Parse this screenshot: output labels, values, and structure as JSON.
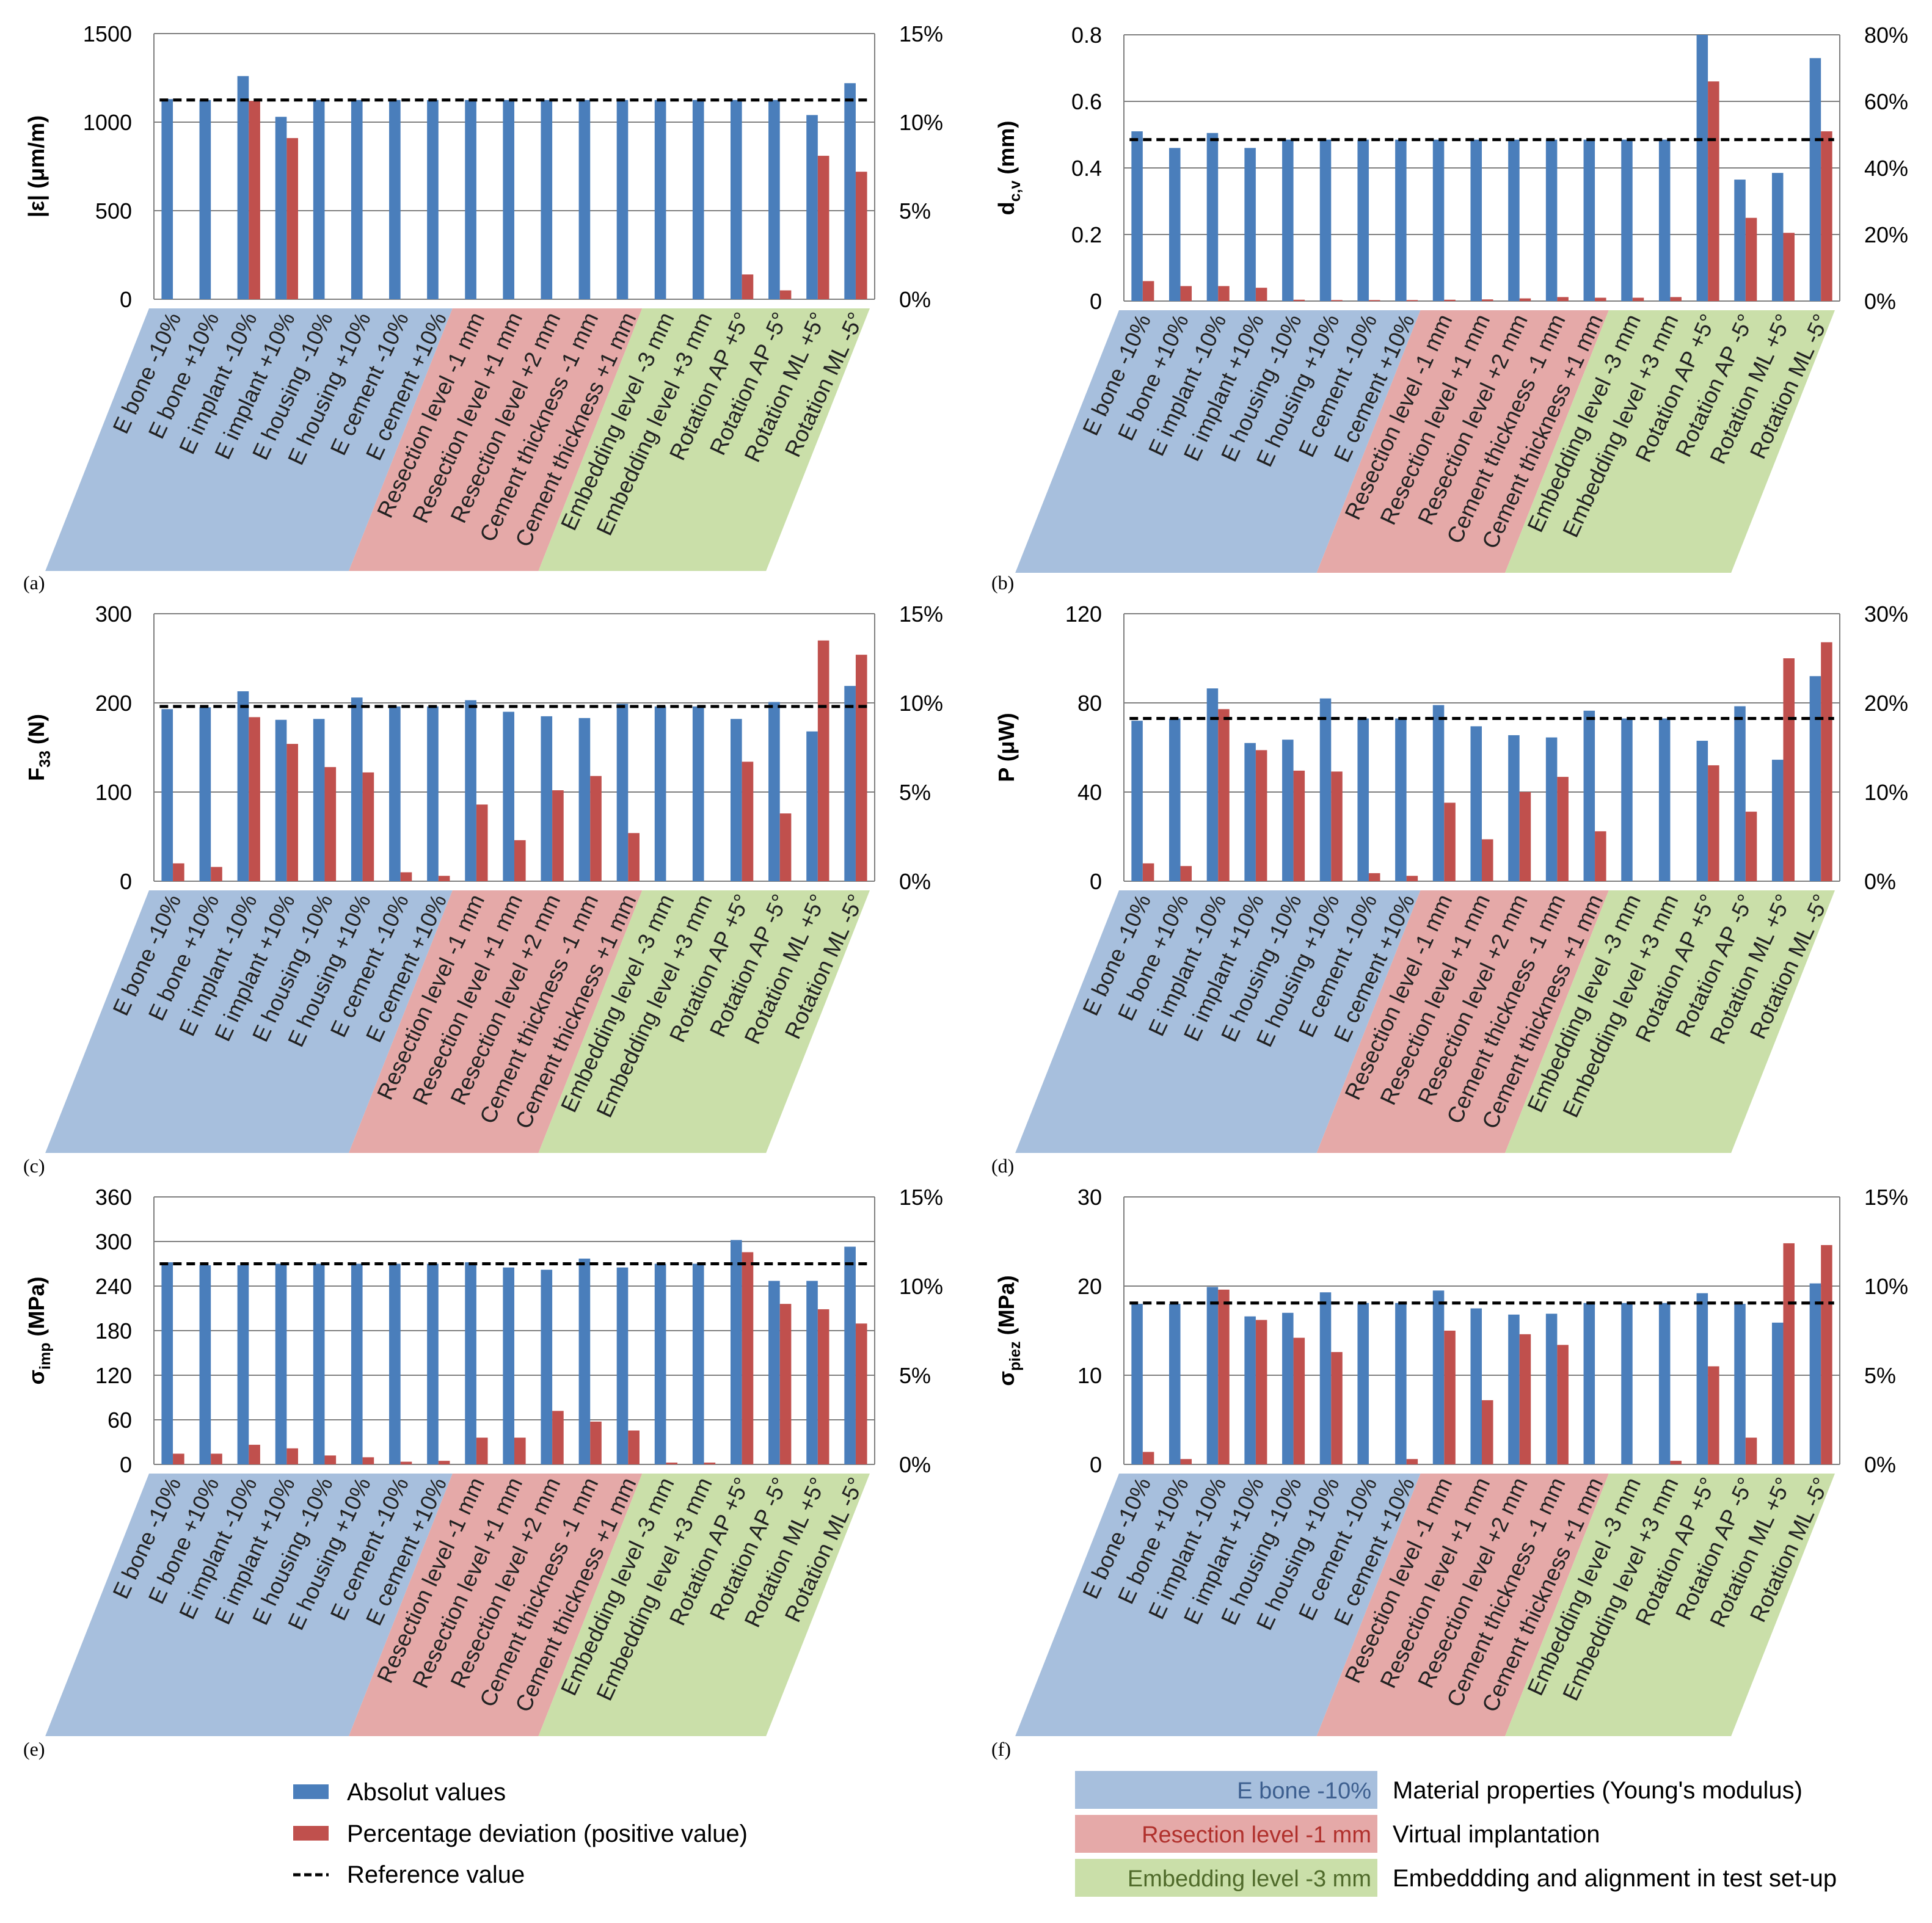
{
  "colors": {
    "absolute": "#4a7ebb",
    "percent": "#c0504d",
    "reference": "#000000",
    "group_material": "#a7bfdd",
    "group_virtual": "#e5a9a8",
    "group_embedding": "#cadfa9",
    "material_text": "#3d5f8f",
    "virtual_text": "#b0302c",
    "embedding_text": "#4f6a2a"
  },
  "categories": [
    "E bone -10%",
    "E bone +10%",
    "E implant -10%",
    "E implant +10%",
    "E housing -10%",
    "E housing +10%",
    "E cement -10%",
    "E cement +10%",
    "Resection level  -1 mm",
    "Resection level  +1 mm",
    "Resection level  +2 mm",
    "Cement thickness -1 mm",
    "Cement thickness +1 mm",
    "Embedding level -3 mm",
    "Embedding level +3 mm",
    "Rotation AP +5°",
    "Rotation AP -5°",
    "Rotation ML +5°",
    "Rotation ML -5°"
  ],
  "legend": {
    "absolute": "Absolut values",
    "percent": "Percentage deviation (positive value)",
    "reference": "Reference value",
    "group_material_sample": "E bone -10%",
    "group_material_desc": "Material properties (Young's modulus)",
    "group_virtual_sample": "Resection level -1 mm",
    "group_virtual_desc": "Virtual implantation",
    "group_embedding_sample": "Embedding level -3 mm",
    "group_embedding_desc": "Embeddding and alignment in test set-up"
  },
  "chart_data": [
    {
      "type": "bar",
      "panel": "(a)",
      "ylabel": "|ε| (μm/m)",
      "ylabel_main": "|ε| (μm/m)",
      "ylabel_sub": "",
      "ylim": [
        0,
        1500
      ],
      "yticks": [
        "0",
        "500",
        "1000",
        "1500"
      ],
      "y2lim": [
        0,
        15
      ],
      "y2ticks": [
        "0%",
        "5%",
        "10%",
        "15%"
      ],
      "reference": 1125,
      "series": [
        {
          "name": "Absolut values",
          "axis": "left",
          "values": [
            1130,
            1125,
            1260,
            1030,
            1125,
            1125,
            1125,
            1125,
            1125,
            1125,
            1125,
            1125,
            1125,
            1125,
            1125,
            1125,
            1125,
            1040,
            1220
          ]
        },
        {
          "name": "Percentage deviation (positive value)",
          "axis": "right",
          "values": [
            0,
            0,
            11.2,
            9.1,
            0,
            0,
            0,
            0,
            0,
            0,
            0,
            0,
            0,
            0,
            0,
            1.4,
            0.5,
            8.1,
            7.2
          ]
        }
      ]
    },
    {
      "type": "bar",
      "panel": "(b)",
      "ylabel": "dc,v (mm)",
      "ylabel_main": "d",
      "ylabel_sub": "c,v",
      "ylabel_unit": " (mm)",
      "ylim": [
        0,
        0.8
      ],
      "yticks": [
        "0",
        "0.2",
        "0.4",
        "0.6",
        "0.8"
      ],
      "y2lim": [
        0,
        80
      ],
      "y2ticks": [
        "0%",
        "20%",
        "40%",
        "60%",
        "80%"
      ],
      "reference": 0.485,
      "series": [
        {
          "name": "Absolut values",
          "axis": "left",
          "values": [
            0.51,
            0.46,
            0.505,
            0.46,
            0.485,
            0.485,
            0.485,
            0.485,
            0.485,
            0.485,
            0.485,
            0.485,
            0.485,
            0.485,
            0.485,
            0.8,
            0.365,
            0.385,
            0.73
          ]
        },
        {
          "name": "Percentage deviation (positive value)",
          "axis": "right",
          "values": [
            6,
            4.5,
            4.5,
            4,
            0.4,
            0.3,
            0.3,
            0.3,
            0.4,
            0.5,
            0.8,
            1.2,
            1,
            1,
            1.2,
            66,
            25,
            20.5,
            51
          ]
        }
      ]
    },
    {
      "type": "bar",
      "panel": "(c)",
      "ylabel": "F33 (N)",
      "ylabel_main": "F",
      "ylabel_sub": "33",
      "ylabel_unit": " (N)",
      "ylim": [
        0,
        300
      ],
      "yticks": [
        "0",
        "100",
        "200",
        "300"
      ],
      "y2lim": [
        0,
        15
      ],
      "y2ticks": [
        "0%",
        "5%",
        "10%",
        "15%"
      ],
      "reference": 196,
      "series": [
        {
          "name": "Absolut values",
          "axis": "left",
          "values": [
            193,
            195,
            213,
            181,
            182,
            206,
            196,
            196,
            203,
            190,
            185,
            183,
            199,
            196,
            196,
            182,
            201,
            168,
            219
          ]
        },
        {
          "name": "Percentage deviation (positive value)",
          "axis": "right",
          "values": [
            1,
            0.8,
            9.2,
            7.7,
            6.4,
            6.1,
            0.5,
            0.3,
            4.3,
            2.3,
            5.1,
            5.9,
            2.7,
            0,
            0,
            6.7,
            3.8,
            13.5,
            12.7
          ]
        }
      ]
    },
    {
      "type": "bar",
      "panel": "(d)",
      "ylabel": "P (μW)",
      "ylabel_main": "P (μW)",
      "ylabel_sub": "",
      "ylim": [
        0,
        120
      ],
      "yticks": [
        "0",
        "40",
        "80",
        "120"
      ],
      "y2lim": [
        0,
        30
      ],
      "y2ticks": [
        "0%",
        "10%",
        "20%",
        "30%"
      ],
      "reference": 73,
      "series": [
        {
          "name": "Absolut values",
          "axis": "left",
          "values": [
            72,
            73,
            86.5,
            62,
            63.5,
            82,
            73,
            73,
            79,
            69.5,
            65.5,
            64.5,
            76.5,
            73,
            73,
            63,
            78.5,
            54.5,
            92
          ]
        },
        {
          "name": "Percentage deviation (positive value)",
          "axis": "right",
          "values": [
            2,
            1.7,
            19.3,
            14.7,
            12.4,
            12.3,
            0.9,
            0.6,
            8.8,
            4.7,
            10,
            11.7,
            5.6,
            0,
            0,
            13,
            7.8,
            25,
            26.8
          ]
        }
      ]
    },
    {
      "type": "bar",
      "panel": "(e)",
      "ylabel": "σimp (MPa)",
      "ylabel_main": "σ",
      "ylabel_sub": "imp",
      "ylabel_unit": " (MPa)",
      "ylim": [
        0,
        360
      ],
      "yticks": [
        "0",
        "60",
        "120",
        "180",
        "240",
        "300",
        "360"
      ],
      "y2lim": [
        0,
        15
      ],
      "y2ticks": [
        "0%",
        "5%",
        "10%",
        "15%"
      ],
      "reference": 270,
      "series": [
        {
          "name": "Absolut values",
          "axis": "left",
          "values": [
            272,
            268,
            268,
            270,
            270,
            270,
            270,
            270,
            272,
            265,
            262,
            277,
            265,
            270,
            270,
            302,
            247,
            247,
            293
          ]
        },
        {
          "name": "Percentage deviation (positive value)",
          "axis": "right",
          "values": [
            0.6,
            0.6,
            1.1,
            0.9,
            0.5,
            0.4,
            0.15,
            0.2,
            1.5,
            1.5,
            3,
            2.4,
            1.9,
            0.1,
            0.1,
            11.9,
            9,
            8.7,
            7.9
          ]
        }
      ]
    },
    {
      "type": "bar",
      "panel": "(f)",
      "ylabel": "σpiez (MPa)",
      "ylabel_main": "σ",
      "ylabel_sub": "piez",
      "ylabel_unit": " (MPa)",
      "ylim": [
        0,
        30
      ],
      "yticks": [
        "0",
        "10",
        "20",
        "30"
      ],
      "y2lim": [
        0,
        15
      ],
      "y2ticks": [
        "0%",
        "5%",
        "10%",
        "15%"
      ],
      "reference": 18.1,
      "series": [
        {
          "name": "Absolut values",
          "axis": "left",
          "values": [
            18,
            18,
            19.9,
            16.6,
            17,
            19.3,
            18.1,
            18.1,
            19.5,
            17.5,
            16.8,
            16.9,
            18.1,
            18.1,
            18.1,
            19.2,
            18,
            15.9,
            20.3
          ]
        },
        {
          "name": "Percentage deviation (positive value)",
          "axis": "right",
          "values": [
            0.7,
            0.3,
            9.8,
            8.1,
            7.1,
            6.3,
            0,
            0.3,
            7.5,
            3.6,
            7.3,
            6.7,
            0,
            0,
            0.2,
            5.5,
            1.5,
            12.4,
            12.3
          ]
        }
      ]
    }
  ]
}
